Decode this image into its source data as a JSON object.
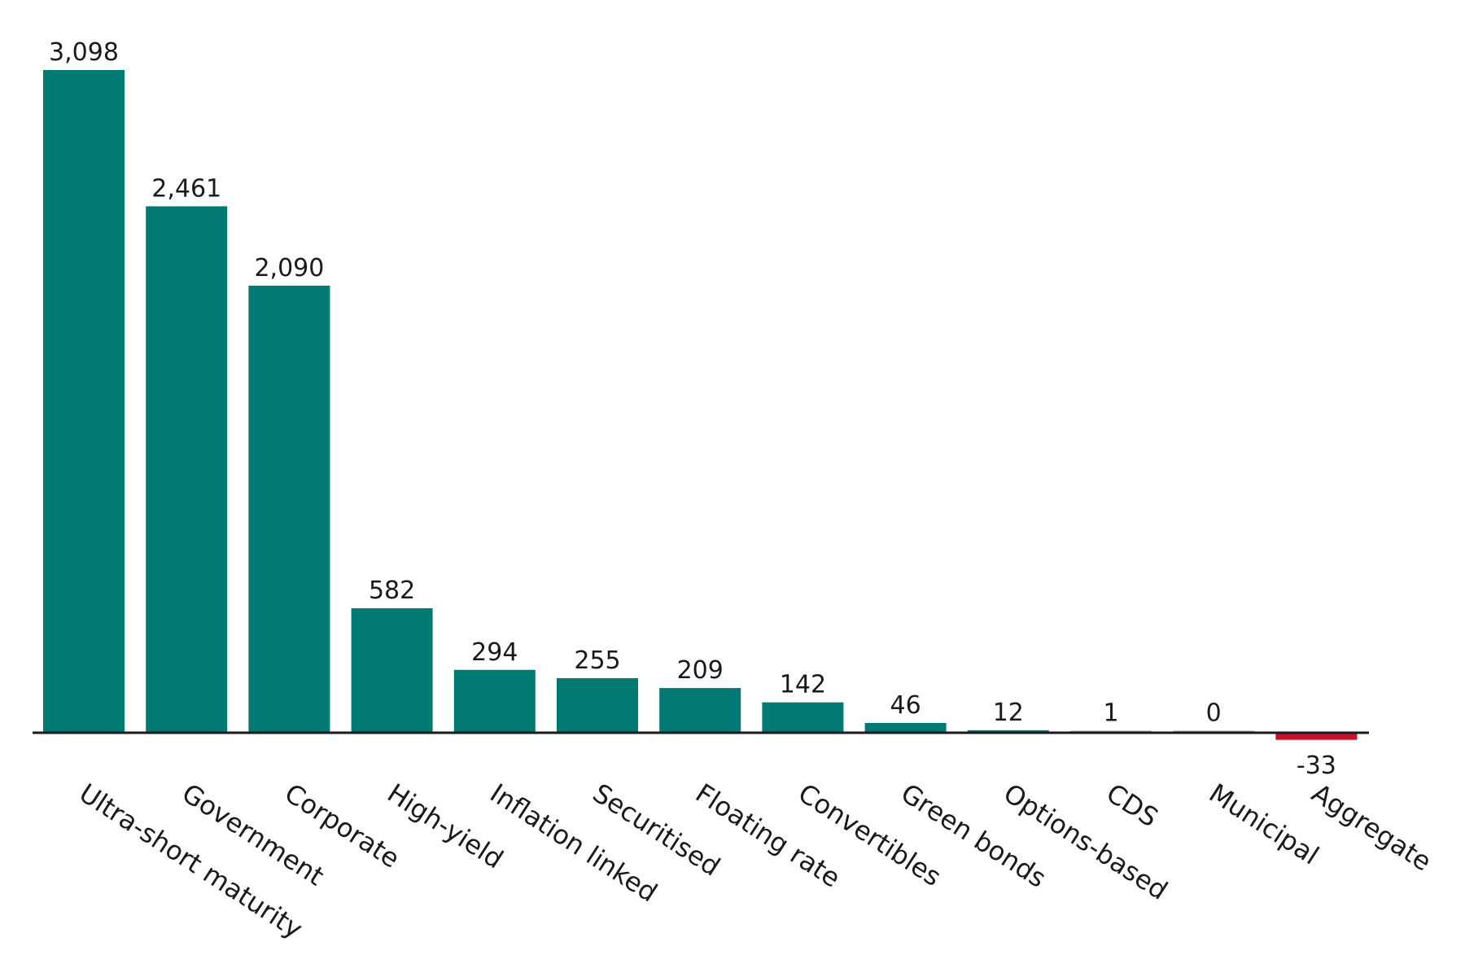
{
  "chart_data": {
    "type": "bar",
    "title": "",
    "xlabel": "",
    "ylabel": "",
    "categories": [
      "Ultra-short maturity",
      "Government",
      "Corporate",
      "High-yield",
      "Inflation linked",
      "Securitised",
      "Floating rate",
      "Convertibles",
      "Green bonds",
      "Options-based",
      "CDS",
      "Municipal",
      "Aggregate"
    ],
    "values": [
      3098,
      2461,
      2090,
      582,
      294,
      255,
      209,
      142,
      46,
      12,
      1,
      0,
      -33
    ],
    "value_labels": [
      "3,098",
      "2,461",
      "2,090",
      "582",
      "294",
      "255",
      "209",
      "142",
      "46",
      "12",
      "1",
      "0",
      "-33"
    ],
    "ylim": [
      -33,
      3098
    ],
    "grid": false,
    "legend": "none",
    "colors": {
      "positive": "#007a73",
      "negative": "#c8102e",
      "baseline": "#1a1a1a",
      "text": "#1a1a1a"
    }
  }
}
